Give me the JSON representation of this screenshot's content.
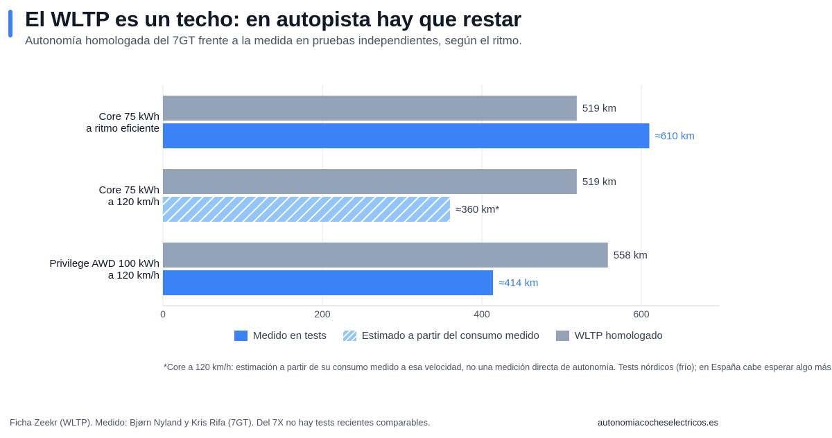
{
  "header": {
    "title": "El WLTP es un techo: en autopista hay que restar",
    "subtitle": "Autonomía homologada del 7GT frente a la medida en pruebas independientes, según el ritmo."
  },
  "colors": {
    "accent": "#3b82f6",
    "measured": "#3b82f6",
    "estimated": "#93c5fd",
    "wltp": "#94a3b8",
    "measured_label": "#3b82f6",
    "neutral_label": "#374151"
  },
  "legend": {
    "measured": "Medido en tests",
    "estimated": "Estimado a partir del consumo medido",
    "wltp": "WLTP homologado"
  },
  "chart_data": {
    "type": "bar",
    "orientation": "horizontal",
    "title": "",
    "xlabel": "",
    "ylabel": "",
    "xlim": [
      0,
      700
    ],
    "xticks": [
      0,
      200,
      400,
      600
    ],
    "grid": true,
    "legend_position": "bottom",
    "groups": [
      {
        "label_lines": [
          "Core 75 kWh",
          "a ritmo eficiente"
        ],
        "bars": [
          {
            "series": "wltp",
            "value": 519,
            "label": "519 km"
          },
          {
            "series": "measured",
            "value": 610,
            "label": "≈610 km"
          }
        ]
      },
      {
        "label_lines": [
          "Core 75 kWh",
          "a 120 km/h"
        ],
        "bars": [
          {
            "series": "wltp",
            "value": 519,
            "label": "519 km"
          },
          {
            "series": "estimated",
            "value": 360,
            "label": "≈360 km*"
          }
        ]
      },
      {
        "label_lines": [
          "Privilege AWD 100 kWh",
          "a 120 km/h"
        ],
        "bars": [
          {
            "series": "wltp",
            "value": 558,
            "label": "558 km"
          },
          {
            "series": "measured",
            "value": 414,
            "label": "≈414 km"
          }
        ]
      }
    ]
  },
  "footnote": "*Core a 120 km/h: estimación a partir de su consumo medido a esa velocidad, no una medición directa de autonomía. Tests nórdicos (frío); en España cabe esperar algo más.",
  "footer": {
    "source": "Ficha Zeekr (WLTP). Medido: Bjørn Nyland y Kris Rifa (7GT). Del 7X no hay tests recientes comparables.",
    "brand": "autonomiacocheselectricos.es"
  }
}
